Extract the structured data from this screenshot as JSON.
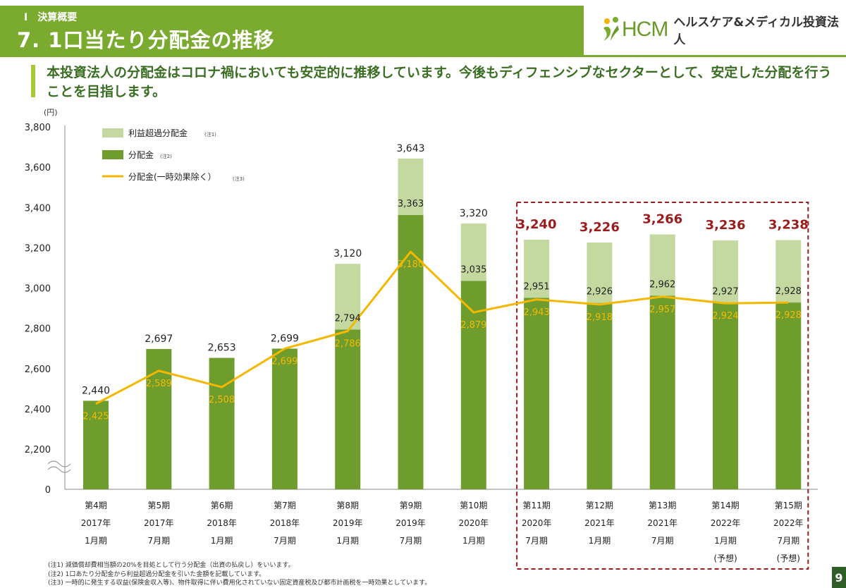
{
  "header": {
    "section": "Ⅰ　決算概要",
    "title": "7. 1口当たり分配金の推移"
  },
  "logo": {
    "text": "HCM",
    "name": "ヘルスケア&メディカル投資法人",
    "icon": "hcm-leaf-icon"
  },
  "lead": "本投資法人の分配金はコロナ禍においても安定的に推移しています。今後もディフェンシブなセクターとして、安定した分配を行うことを目指します。",
  "chart_data": {
    "type": "bar",
    "ylabel": "(円)",
    "yticks": [
      "0",
      "2,200",
      "2,400",
      "2,600",
      "2,800",
      "3,000",
      "3,200",
      "3,400",
      "3,600",
      "3,800"
    ],
    "ylim": [
      2100,
      3800
    ],
    "axis_break": true,
    "categories": [
      [
        "第4期",
        "2017年",
        "1月期",
        ""
      ],
      [
        "第5期",
        "2017年",
        "7月期",
        ""
      ],
      [
        "第6期",
        "2018年",
        "1月期",
        ""
      ],
      [
        "第7期",
        "2018年",
        "7月期",
        ""
      ],
      [
        "第8期",
        "2019年",
        "1月期",
        ""
      ],
      [
        "第9期",
        "2019年",
        "7月期",
        ""
      ],
      [
        "第10期",
        "2020年",
        "1月期",
        ""
      ],
      [
        "第11期",
        "2020年",
        "7月期",
        ""
      ],
      [
        "第12期",
        "2021年",
        "1月期",
        ""
      ],
      [
        "第13期",
        "2021年",
        "7月期",
        ""
      ],
      [
        "第14期",
        "2022年",
        "1月期",
        "(予想)"
      ],
      [
        "第15期",
        "2022年",
        "7月期",
        "(予想)"
      ]
    ],
    "series": [
      {
        "name": "分配金",
        "note": "(注2)",
        "color": "#6f9d2d",
        "values": [
          2440,
          2697,
          2653,
          2699,
          2794,
          3363,
          3035,
          2951,
          2926,
          2962,
          2927,
          2928
        ]
      },
      {
        "name": "利益超過分配金",
        "note": "(注1)",
        "color": "#c4d9a0",
        "values": [
          0,
          0,
          0,
          0,
          326,
          280,
          285,
          289,
          300,
          304,
          309,
          310
        ]
      },
      {
        "name": "分配金(一時効果除く）",
        "note": "(注3)",
        "color": "#f5b800",
        "type": "line",
        "values": [
          2425,
          2589,
          2508,
          2699,
          2786,
          3180,
          2879,
          2943,
          2918,
          2957,
          2924,
          2928
        ]
      }
    ],
    "total_labels": [
      "2,440",
      "2,697",
      "2,653",
      "2,699",
      "3,120",
      "3,643",
      "3,320",
      "3,240",
      "3,226",
      "3,266",
      "3,236",
      "3,238"
    ],
    "base_labels": [
      "",
      "",
      "",
      "",
      "2,794",
      "3,363",
      "3,035",
      "2,951",
      "2,926",
      "2,962",
      "2,927",
      "2,928"
    ],
    "line_labels": [
      "2,425",
      "2,589",
      "2,508",
      "2,699",
      "2,786",
      "3,180",
      "2,879",
      "2,943",
      "2,918",
      "2,957",
      "2,924",
      "2,928"
    ],
    "highlight_from": 7,
    "highlight_color": "#9b1c1c",
    "legend_position": "top-left"
  },
  "notes": [
    "(注1) 減価償却費相当額の20%を目処として行う分配金（出資の払戻し）をいいます。",
    "(注2) 1口あたり分配金から利益超過分配金を引いた金額を記載しています。",
    "(注3) 一時的に発生する収益(保険金収入等)、物件取得に伴い費用化されていない固定資産税及び都市計画税を一時効果としています。"
  ],
  "page_number": "9"
}
